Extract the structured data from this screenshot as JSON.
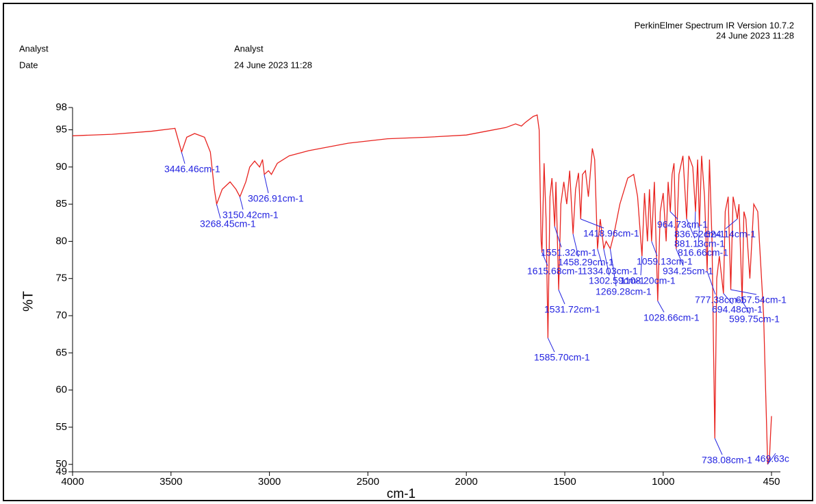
{
  "header": {
    "software": "PerkinElmer Spectrum IR Version 10.7.2",
    "timestamp": "24 June 2023 11:28",
    "fields": [
      {
        "label": "Analyst",
        "value": "Analyst"
      },
      {
        "label": "Date",
        "value": "24 June 2023 11:28"
      }
    ]
  },
  "chart_data": {
    "type": "line",
    "xlabel": "cm-1",
    "ylabel": "%T",
    "xlim": [
      4000,
      450
    ],
    "xticks": [
      4000,
      3500,
      3000,
      2500,
      2000,
      1500,
      1000,
      450
    ],
    "ylim": [
      49,
      98
    ],
    "yticks": [
      49,
      50,
      55,
      60,
      65,
      70,
      75,
      80,
      85,
      90,
      95,
      98
    ],
    "x": [
      4000,
      3800,
      3600,
      3480,
      3446,
      3420,
      3380,
      3330,
      3300,
      3280,
      3268,
      3240,
      3200,
      3170,
      3150,
      3120,
      3100,
      3075,
      3050,
      3035,
      3026,
      3005,
      2990,
      2960,
      2900,
      2800,
      2600,
      2400,
      2200,
      2000,
      1900,
      1800,
      1750,
      1720,
      1700,
      1660,
      1640,
      1630,
      1620,
      1615.68,
      1605,
      1595,
      1585.7,
      1575,
      1565,
      1551,
      1545,
      1531,
      1520,
      1505,
      1490,
      1475,
      1458,
      1445,
      1430,
      1419,
      1410,
      1395,
      1380,
      1360,
      1348,
      1334,
      1320,
      1302,
      1290,
      1269,
      1250,
      1220,
      1180,
      1150,
      1130,
      1108,
      1095,
      1080,
      1070,
      1059,
      1045,
      1028,
      1015,
      1000,
      985,
      975,
      964,
      955,
      945,
      934,
      920,
      900,
      881,
      870,
      850,
      836,
      825,
      816,
      805,
      790,
      777,
      765,
      752,
      738,
      728,
      715,
      694,
      685,
      670,
      657,
      645,
      630,
      624,
      615,
      599,
      590,
      580,
      560,
      540,
      520,
      505,
      490,
      480,
      469.6,
      460,
      455,
      450
    ],
    "series": [
      {
        "name": "%T",
        "color": "#e8231f",
        "values": [
          94.2,
          94.4,
          94.8,
          95.2,
          92,
          94,
          94.5,
          94,
          92,
          87,
          85,
          87,
          88,
          87,
          86,
          88,
          90,
          90.8,
          90,
          91,
          89,
          89.5,
          89,
          90.5,
          91.5,
          92.2,
          93.2,
          93.8,
          94,
          94.3,
          94.8,
          95.3,
          95.8,
          95.5,
          96,
          96.8,
          97,
          95,
          80,
          78.5,
          90.5,
          83,
          67,
          86,
          88.5,
          82,
          88,
          73.5,
          85,
          88,
          85,
          89.5,
          81,
          87,
          89.2,
          83,
          89,
          89.5,
          86,
          92.5,
          91,
          79,
          83,
          79,
          80,
          79,
          81,
          85,
          88.5,
          89,
          86,
          78,
          86.5,
          80,
          87,
          80,
          88,
          72,
          84,
          86.5,
          80,
          88,
          84,
          89,
          90.5,
          79,
          89,
          91.5,
          83,
          91.5,
          90,
          84,
          91,
          82,
          91.5,
          86,
          76,
          91,
          80,
          53.5,
          75,
          78,
          73,
          84,
          86,
          73.5,
          86,
          84,
          83,
          85,
          72,
          84,
          83,
          75,
          85,
          84,
          77,
          70,
          60,
          50,
          51,
          54,
          56.5
        ]
      }
    ],
    "annotations": [
      {
        "x": 3446.46,
        "y": 92,
        "label": "3446.46cm-1"
      },
      {
        "x": 3268.45,
        "y": 85,
        "label": "3268.45cm-1"
      },
      {
        "x": 3150.42,
        "y": 86,
        "label": "3150.42cm-1"
      },
      {
        "x": 3026.91,
        "y": 89,
        "label": "3026.91cm-1"
      },
      {
        "x": 1615.68,
        "y": 78.5,
        "label": "1615.68cm-1"
      },
      {
        "x": 1585.7,
        "y": 67,
        "label": "1585.70cm-1"
      },
      {
        "x": 1551.32,
        "y": 82,
        "label": "1551.32cm-1"
      },
      {
        "x": 1531.72,
        "y": 73.5,
        "label": "1531.72cm-1"
      },
      {
        "x": 1458.29,
        "y": 81,
        "label": "1458.29cm-1"
      },
      {
        "x": 1418.96,
        "y": 83,
        "label": "1418.96cm-1"
      },
      {
        "x": 1334.03,
        "y": 79,
        "label": "1334.03cm-1"
      },
      {
        "x": 1302.59,
        "y": 79,
        "label": "1302.59cm-1"
      },
      {
        "x": 1269.28,
        "y": 79,
        "label": "1269.28cm-1"
      },
      {
        "x": 1108.2,
        "y": 78,
        "label": "1108.20cm-1"
      },
      {
        "x": 1059.13,
        "y": 80,
        "label": "1059.13cm-1"
      },
      {
        "x": 1028.66,
        "y": 72,
        "label": "1028.66cm-1"
      },
      {
        "x": 964.73,
        "y": 84,
        "label": "964.73cm-1"
      },
      {
        "x": 934.25,
        "y": 79,
        "label": "934.25cm-1"
      },
      {
        "x": 881.13,
        "y": 83,
        "label": "881.13cm-1"
      },
      {
        "x": 836.52,
        "y": 84,
        "label": "836.52cm-1"
      },
      {
        "x": 816.66,
        "y": 82,
        "label": "816.66cm-1"
      },
      {
        "x": 777.38,
        "y": 76,
        "label": "777.38cm-1"
      },
      {
        "x": 738.08,
        "y": 53.5,
        "label": "738.08cm-1"
      },
      {
        "x": 694.48,
        "y": 73,
        "label": "694.48cm-1"
      },
      {
        "x": 657.54,
        "y": 73.5,
        "label": "657.54cm-1"
      },
      {
        "x": 624.14,
        "y": 83,
        "label": "624.14cm-1"
      },
      {
        "x": 599.75,
        "y": 72,
        "label": "599.75cm-1"
      },
      {
        "x": 469.63,
        "y": 50,
        "label": "469.63c"
      }
    ]
  }
}
